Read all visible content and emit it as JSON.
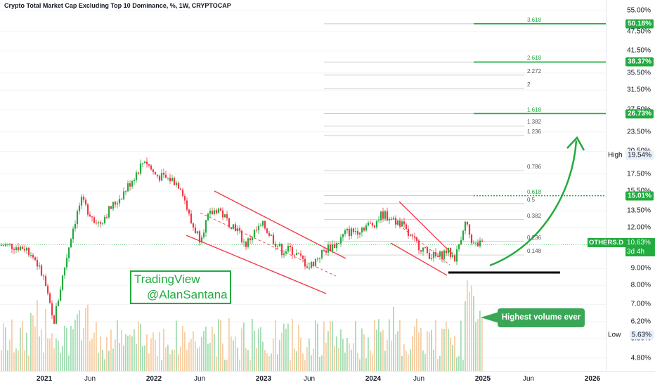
{
  "header": {
    "title": "Crypto Total Market Cap Excluding Top 10 Dominance, %, 1W, CRYPTOCAP"
  },
  "watermark": {
    "line1": "TradingView",
    "line2": "@AlanSantana"
  },
  "callout": {
    "text": "Highest volume ever"
  },
  "symbol_tag": {
    "name": "OTHERS.D",
    "value": "10.63%",
    "countdown": "3d 4h"
  },
  "high_label": {
    "label": "High",
    "value": "19.54%"
  },
  "low_label": {
    "label": "Low",
    "value": "5.63%"
  },
  "colors": {
    "up": "#22ab3f",
    "down": "#f23645",
    "accent": "#22ab3f",
    "vol_up": "#8dd6a0",
    "vol_down": "#f5c38e",
    "black_line": "#000000"
  },
  "chart_data": {
    "type": "candlestick",
    "title": "Crypto Total Market Cap Excluding Top 10 Dominance, %, 1W, CRYPTOCAP",
    "symbol": "OTHERS.D",
    "y_axis": {
      "scale": "log",
      "ticks": [
        "55.00%",
        "50.18%",
        "47.50%",
        "41.50%",
        "38.37%",
        "35.50%",
        "31.50%",
        "27.50%",
        "26.73%",
        "23.50%",
        "20.50%",
        "19.54%",
        "17.50%",
        "15.50%",
        "15.01%",
        "13.50%",
        "12.00%",
        "10.63%",
        "9.00%",
        "8.00%",
        "7.00%",
        "6.20%",
        "5.63%",
        "5.50%",
        "4.80%"
      ],
      "tick_values": [
        55.0,
        47.5,
        41.5,
        35.5,
        31.5,
        27.5,
        23.5,
        20.5,
        17.5,
        15.5,
        13.5,
        12.0,
        9.0,
        8.0,
        7.0,
        6.2,
        5.5,
        4.8
      ],
      "range": [
        4.5,
        57
      ]
    },
    "x_axis": {
      "ticks": [
        "2021",
        "Jun",
        "2022",
        "Jun",
        "2023",
        "Jun",
        "2024",
        "Jun",
        "2025",
        "Jun",
        "2026"
      ],
      "bold": [
        "2021",
        "2022",
        "2023",
        "2024",
        "2025",
        "2026"
      ]
    },
    "fib_levels": [
      {
        "ratio": "0.148",
        "value": 9.9
      },
      {
        "ratio": "0.236",
        "value": 10.9
      },
      {
        "ratio": "0.382",
        "value": 12.7
      },
      {
        "ratio": "0.5",
        "value": 14.2
      },
      {
        "ratio": "0.618",
        "value": 15.01
      },
      {
        "ratio": "0.786",
        "value": 17.9
      },
      {
        "ratio": "1.236",
        "value": 22.9
      },
      {
        "ratio": "1.382",
        "value": 24.5
      },
      {
        "ratio": "1.618",
        "value": 26.73
      },
      {
        "ratio": "2",
        "value": 31.8
      },
      {
        "ratio": "2.272",
        "value": 35.0
      },
      {
        "ratio": "2.618",
        "value": 38.37
      },
      {
        "ratio": "3.618",
        "value": 50.18
      }
    ],
    "key_levels": [
      50.18,
      38.37,
      26.73,
      15.01
    ],
    "last_price": 10.63,
    "high": 19.54,
    "low": 5.63,
    "price_series": [
      {
        "date": "2020-09",
        "value": 10.6
      },
      {
        "date": "2020-11",
        "value": 10.4
      },
      {
        "date": "2020-12",
        "value": 9.6
      },
      {
        "date": "2021-01",
        "value": 8.3
      },
      {
        "date": "2021-02",
        "value": 6.1
      },
      {
        "date": "2021-03",
        "value": 8.5
      },
      {
        "date": "2021-04",
        "value": 11.6
      },
      {
        "date": "2021-05",
        "value": 14.5
      },
      {
        "date": "2021-06",
        "value": 13.3
      },
      {
        "date": "2021-07",
        "value": 12.3
      },
      {
        "date": "2021-08",
        "value": 13.5
      },
      {
        "date": "2021-09",
        "value": 14.5
      },
      {
        "date": "2021-10",
        "value": 15.8
      },
      {
        "date": "2021-11",
        "value": 17.5
      },
      {
        "date": "2021-12",
        "value": 19.4
      },
      {
        "date": "2022-01",
        "value": 17.5
      },
      {
        "date": "2022-02",
        "value": 17.0
      },
      {
        "date": "2022-03",
        "value": 16.8
      },
      {
        "date": "2022-04",
        "value": 16.0
      },
      {
        "date": "2022-05",
        "value": 12.5
      },
      {
        "date": "2022-06",
        "value": 11.2
      },
      {
        "date": "2022-07",
        "value": 13.0
      },
      {
        "date": "2022-08",
        "value": 13.8
      },
      {
        "date": "2022-09",
        "value": 12.6
      },
      {
        "date": "2022-10",
        "value": 12.0
      },
      {
        "date": "2022-11",
        "value": 10.6
      },
      {
        "date": "2022-12",
        "value": 11.6
      },
      {
        "date": "2023-01",
        "value": 12.2
      },
      {
        "date": "2023-02",
        "value": 11.1
      },
      {
        "date": "2023-03",
        "value": 10.2
      },
      {
        "date": "2023-04",
        "value": 10.3
      },
      {
        "date": "2023-05",
        "value": 9.7
      },
      {
        "date": "2023-06",
        "value": 9.1
      },
      {
        "date": "2023-07",
        "value": 9.8
      },
      {
        "date": "2023-08",
        "value": 10.4
      },
      {
        "date": "2023-09",
        "value": 10.7
      },
      {
        "date": "2023-10",
        "value": 11.6
      },
      {
        "date": "2023-11",
        "value": 11.7
      },
      {
        "date": "2023-12",
        "value": 12.1
      },
      {
        "date": "2024-01",
        "value": 12.3
      },
      {
        "date": "2024-02",
        "value": 13.2
      },
      {
        "date": "2024-03",
        "value": 12.8
      },
      {
        "date": "2024-04",
        "value": 12.4
      },
      {
        "date": "2024-05",
        "value": 11.2
      },
      {
        "date": "2024-06",
        "value": 10.6
      },
      {
        "date": "2024-07",
        "value": 10.0
      },
      {
        "date": "2024-08",
        "value": 9.7
      },
      {
        "date": "2024-09",
        "value": 10.2
      },
      {
        "date": "2024-10",
        "value": 9.7
      },
      {
        "date": "2024-11",
        "value": 12.5
      },
      {
        "date": "2024-12",
        "value": 10.63
      }
    ],
    "volume_note": "Highest volume ever"
  }
}
